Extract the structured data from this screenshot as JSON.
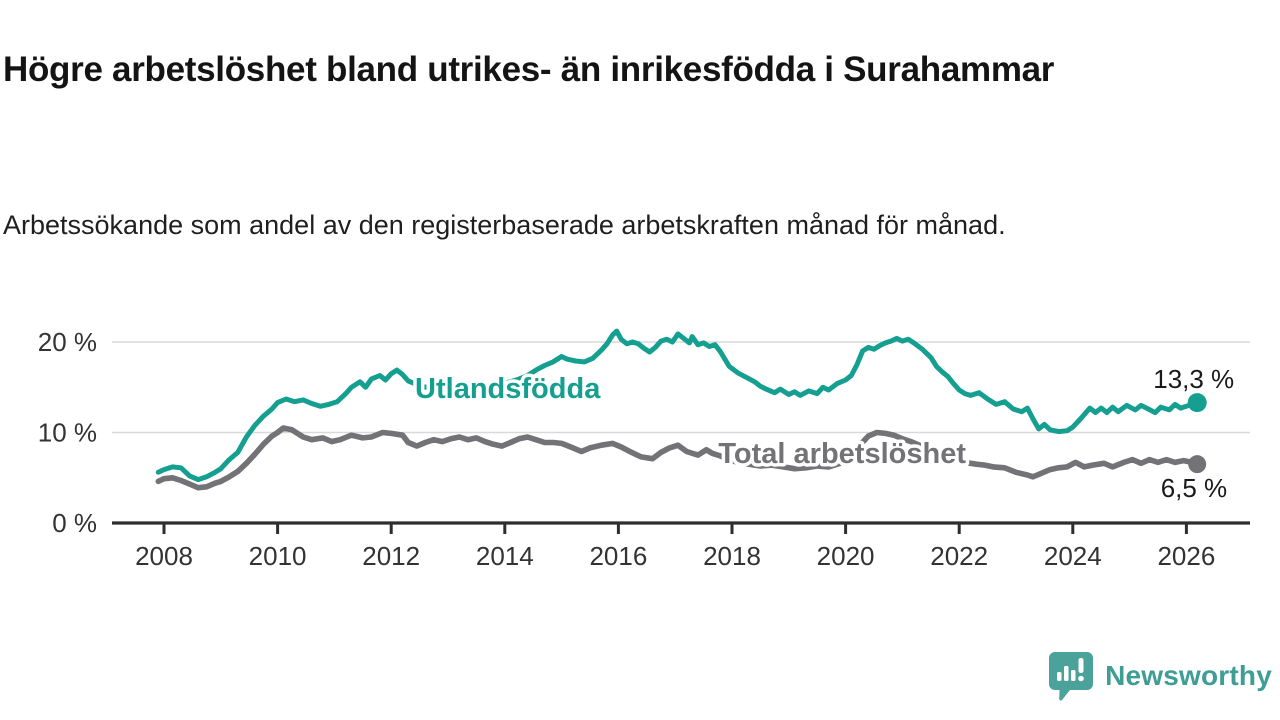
{
  "header": {
    "title": "Högre arbetslöshet bland utrikes- än inrikesfödda i Surahammar",
    "subtitle": "Arbetssökande som andel av den registerbaserade arbetskraften månad för månad."
  },
  "chart_data": {
    "type": "line",
    "unit": "%",
    "grid": "horizontal gridlines at 10 and 20",
    "xlim": [
      2007.9,
      2026.6
    ],
    "ylim": [
      0,
      22
    ],
    "x_ticks": [
      2008,
      2010,
      2012,
      2014,
      2016,
      2018,
      2020,
      2022,
      2024,
      2026
    ],
    "y_ticks": [
      {
        "value": 0,
        "label": "0 %"
      },
      {
        "value": 10,
        "label": "10 %"
      },
      {
        "value": 20,
        "label": "20 %"
      }
    ],
    "series": [
      {
        "name": "Utlandsfödda",
        "color": "#159f90",
        "end_value_label": "13,3 %",
        "label_anchor": [
          2012.42,
          13.8
        ],
        "points": [
          [
            2007.9,
            5.6
          ],
          [
            2008.0,
            5.9
          ],
          [
            2008.15,
            6.2
          ],
          [
            2008.3,
            6.1
          ],
          [
            2008.45,
            5.2
          ],
          [
            2008.6,
            4.8
          ],
          [
            2008.75,
            5.1
          ],
          [
            2008.9,
            5.6
          ],
          [
            2009.0,
            6.0
          ],
          [
            2009.15,
            7.0
          ],
          [
            2009.3,
            7.8
          ],
          [
            2009.45,
            9.5
          ],
          [
            2009.6,
            10.8
          ],
          [
            2009.75,
            11.8
          ],
          [
            2009.9,
            12.6
          ],
          [
            2010.0,
            13.3
          ],
          [
            2010.15,
            13.7
          ],
          [
            2010.3,
            13.4
          ],
          [
            2010.45,
            13.6
          ],
          [
            2010.6,
            13.2
          ],
          [
            2010.75,
            12.9
          ],
          [
            2010.9,
            13.1
          ],
          [
            2011.05,
            13.4
          ],
          [
            2011.2,
            14.3
          ],
          [
            2011.3,
            15.0
          ],
          [
            2011.45,
            15.6
          ],
          [
            2011.55,
            15.0
          ],
          [
            2011.65,
            15.9
          ],
          [
            2011.8,
            16.3
          ],
          [
            2011.9,
            15.8
          ],
          [
            2012.0,
            16.5
          ],
          [
            2012.1,
            16.9
          ],
          [
            2012.2,
            16.4
          ],
          [
            2012.3,
            15.7
          ],
          [
            2012.45,
            15.3
          ],
          [
            2012.6,
            15.0
          ],
          [
            2012.75,
            15.2
          ],
          [
            2012.9,
            14.9
          ],
          [
            2013.05,
            15.1
          ],
          [
            2013.2,
            14.7
          ],
          [
            2013.35,
            14.9
          ],
          [
            2013.5,
            14.6
          ],
          [
            2013.65,
            14.8
          ],
          [
            2013.8,
            15.1
          ],
          [
            2013.95,
            15.4
          ],
          [
            2014.1,
            15.6
          ],
          [
            2014.25,
            15.9
          ],
          [
            2014.4,
            16.3
          ],
          [
            2014.55,
            16.9
          ],
          [
            2014.7,
            17.4
          ],
          [
            2014.85,
            17.8
          ],
          [
            2015.0,
            18.4
          ],
          [
            2015.1,
            18.1
          ],
          [
            2015.25,
            17.9
          ],
          [
            2015.4,
            17.8
          ],
          [
            2015.55,
            18.2
          ],
          [
            2015.7,
            19.1
          ],
          [
            2015.8,
            19.8
          ],
          [
            2015.9,
            20.8
          ],
          [
            2015.97,
            21.2
          ],
          [
            2016.05,
            20.3
          ],
          [
            2016.15,
            19.8
          ],
          [
            2016.25,
            20.0
          ],
          [
            2016.35,
            19.8
          ],
          [
            2016.45,
            19.3
          ],
          [
            2016.55,
            18.9
          ],
          [
            2016.65,
            19.4
          ],
          [
            2016.75,
            20.1
          ],
          [
            2016.85,
            20.3
          ],
          [
            2016.95,
            20.0
          ],
          [
            2017.05,
            20.9
          ],
          [
            2017.15,
            20.4
          ],
          [
            2017.25,
            19.9
          ],
          [
            2017.3,
            20.6
          ],
          [
            2017.4,
            19.7
          ],
          [
            2017.5,
            19.9
          ],
          [
            2017.6,
            19.5
          ],
          [
            2017.7,
            19.7
          ],
          [
            2017.8,
            18.9
          ],
          [
            2017.95,
            17.3
          ],
          [
            2018.1,
            16.6
          ],
          [
            2018.25,
            16.1
          ],
          [
            2018.4,
            15.6
          ],
          [
            2018.5,
            15.1
          ],
          [
            2018.6,
            14.8
          ],
          [
            2018.75,
            14.4
          ],
          [
            2018.85,
            14.8
          ],
          [
            2019.0,
            14.2
          ],
          [
            2019.1,
            14.5
          ],
          [
            2019.2,
            14.1
          ],
          [
            2019.35,
            14.6
          ],
          [
            2019.5,
            14.3
          ],
          [
            2019.6,
            15.0
          ],
          [
            2019.7,
            14.7
          ],
          [
            2019.85,
            15.4
          ],
          [
            2020.0,
            15.8
          ],
          [
            2020.1,
            16.3
          ],
          [
            2020.2,
            17.5
          ],
          [
            2020.3,
            19.0
          ],
          [
            2020.4,
            19.4
          ],
          [
            2020.5,
            19.2
          ],
          [
            2020.6,
            19.6
          ],
          [
            2020.7,
            19.9
          ],
          [
            2020.8,
            20.1
          ],
          [
            2020.9,
            20.4
          ],
          [
            2021.0,
            20.1
          ],
          [
            2021.1,
            20.3
          ],
          [
            2021.2,
            19.9
          ],
          [
            2021.35,
            19.2
          ],
          [
            2021.5,
            18.3
          ],
          [
            2021.6,
            17.3
          ],
          [
            2021.7,
            16.7
          ],
          [
            2021.8,
            16.2
          ],
          [
            2021.9,
            15.4
          ],
          [
            2022.0,
            14.7
          ],
          [
            2022.1,
            14.3
          ],
          [
            2022.2,
            14.1
          ],
          [
            2022.35,
            14.4
          ],
          [
            2022.5,
            13.7
          ],
          [
            2022.65,
            13.1
          ],
          [
            2022.8,
            13.4
          ],
          [
            2022.95,
            12.6
          ],
          [
            2023.1,
            12.3
          ],
          [
            2023.2,
            12.7
          ],
          [
            2023.3,
            11.5
          ],
          [
            2023.4,
            10.4
          ],
          [
            2023.5,
            10.9
          ],
          [
            2023.6,
            10.3
          ],
          [
            2023.75,
            10.1
          ],
          [
            2023.9,
            10.2
          ],
          [
            2024.0,
            10.6
          ],
          [
            2024.15,
            11.6
          ],
          [
            2024.3,
            12.7
          ],
          [
            2024.4,
            12.2
          ],
          [
            2024.5,
            12.7
          ],
          [
            2024.6,
            12.2
          ],
          [
            2024.7,
            12.8
          ],
          [
            2024.8,
            12.3
          ],
          [
            2024.95,
            13.0
          ],
          [
            2025.1,
            12.5
          ],
          [
            2025.2,
            13.0
          ],
          [
            2025.3,
            12.7
          ],
          [
            2025.45,
            12.2
          ],
          [
            2025.55,
            12.8
          ],
          [
            2025.7,
            12.5
          ],
          [
            2025.8,
            13.1
          ],
          [
            2025.9,
            12.7
          ],
          [
            2026.0,
            12.9
          ],
          [
            2026.1,
            13.1
          ],
          [
            2026.19,
            13.3
          ]
        ]
      },
      {
        "name": "Total arbetslöshet",
        "color": "#737377",
        "end_value_label": "6,5 %",
        "label_anchor": [
          2017.76,
          6.63
        ],
        "points": [
          [
            2007.9,
            4.6
          ],
          [
            2008.0,
            4.9
          ],
          [
            2008.15,
            5.0
          ],
          [
            2008.3,
            4.7
          ],
          [
            2008.45,
            4.3
          ],
          [
            2008.6,
            3.9
          ],
          [
            2008.75,
            4.0
          ],
          [
            2008.9,
            4.4
          ],
          [
            2009.0,
            4.6
          ],
          [
            2009.15,
            5.1
          ],
          [
            2009.3,
            5.7
          ],
          [
            2009.45,
            6.6
          ],
          [
            2009.6,
            7.6
          ],
          [
            2009.75,
            8.7
          ],
          [
            2009.9,
            9.6
          ],
          [
            2010.0,
            10.0
          ],
          [
            2010.1,
            10.5
          ],
          [
            2010.25,
            10.3
          ],
          [
            2010.45,
            9.5
          ],
          [
            2010.6,
            9.2
          ],
          [
            2010.8,
            9.4
          ],
          [
            2010.95,
            9.0
          ],
          [
            2011.1,
            9.2
          ],
          [
            2011.3,
            9.7
          ],
          [
            2011.5,
            9.4
          ],
          [
            2011.65,
            9.5
          ],
          [
            2011.85,
            10.0
          ],
          [
            2012.0,
            9.9
          ],
          [
            2012.2,
            9.7
          ],
          [
            2012.3,
            8.9
          ],
          [
            2012.45,
            8.5
          ],
          [
            2012.6,
            8.9
          ],
          [
            2012.75,
            9.2
          ],
          [
            2012.9,
            9.0
          ],
          [
            2013.05,
            9.3
          ],
          [
            2013.2,
            9.5
          ],
          [
            2013.35,
            9.2
          ],
          [
            2013.5,
            9.4
          ],
          [
            2013.65,
            9.0
          ],
          [
            2013.8,
            8.7
          ],
          [
            2013.95,
            8.5
          ],
          [
            2014.1,
            8.9
          ],
          [
            2014.25,
            9.3
          ],
          [
            2014.4,
            9.5
          ],
          [
            2014.55,
            9.2
          ],
          [
            2014.7,
            8.9
          ],
          [
            2014.85,
            8.9
          ],
          [
            2015.0,
            8.8
          ],
          [
            2015.2,
            8.3
          ],
          [
            2015.35,
            7.9
          ],
          [
            2015.5,
            8.3
          ],
          [
            2015.7,
            8.6
          ],
          [
            2015.9,
            8.8
          ],
          [
            2016.05,
            8.4
          ],
          [
            2016.2,
            7.9
          ],
          [
            2016.4,
            7.3
          ],
          [
            2016.6,
            7.1
          ],
          [
            2016.75,
            7.8
          ],
          [
            2016.9,
            8.3
          ],
          [
            2017.05,
            8.6
          ],
          [
            2017.2,
            7.9
          ],
          [
            2017.4,
            7.5
          ],
          [
            2017.55,
            8.1
          ],
          [
            2017.65,
            7.7
          ],
          [
            2017.8,
            7.4
          ],
          [
            2017.95,
            7.0
          ],
          [
            2018.1,
            6.7
          ],
          [
            2018.3,
            6.5
          ],
          [
            2018.5,
            6.3
          ],
          [
            2018.7,
            6.4
          ],
          [
            2018.9,
            6.2
          ],
          [
            2019.1,
            6.0
          ],
          [
            2019.3,
            6.1
          ],
          [
            2019.5,
            6.3
          ],
          [
            2019.7,
            6.2
          ],
          [
            2019.9,
            6.6
          ],
          [
            2020.1,
            7.2
          ],
          [
            2020.25,
            8.6
          ],
          [
            2020.4,
            9.6
          ],
          [
            2020.55,
            10.0
          ],
          [
            2020.7,
            9.9
          ],
          [
            2020.85,
            9.7
          ],
          [
            2021.0,
            9.3
          ],
          [
            2021.15,
            9.0
          ],
          [
            2021.3,
            8.6
          ],
          [
            2021.5,
            8.1
          ],
          [
            2021.7,
            7.5
          ],
          [
            2021.9,
            7.0
          ],
          [
            2022.1,
            6.7
          ],
          [
            2022.3,
            6.5
          ],
          [
            2022.45,
            6.4
          ],
          [
            2022.6,
            6.2
          ],
          [
            2022.8,
            6.1
          ],
          [
            2023.0,
            5.6
          ],
          [
            2023.2,
            5.3
          ],
          [
            2023.3,
            5.1
          ],
          [
            2023.45,
            5.5
          ],
          [
            2023.6,
            5.9
          ],
          [
            2023.75,
            6.1
          ],
          [
            2023.9,
            6.2
          ],
          [
            2024.05,
            6.7
          ],
          [
            2024.2,
            6.2
          ],
          [
            2024.35,
            6.4
          ],
          [
            2024.55,
            6.6
          ],
          [
            2024.7,
            6.2
          ],
          [
            2024.9,
            6.7
          ],
          [
            2025.05,
            7.0
          ],
          [
            2025.2,
            6.6
          ],
          [
            2025.35,
            7.0
          ],
          [
            2025.5,
            6.7
          ],
          [
            2025.65,
            7.0
          ],
          [
            2025.8,
            6.7
          ],
          [
            2025.95,
            6.9
          ],
          [
            2026.1,
            6.7
          ],
          [
            2026.19,
            6.5
          ]
        ]
      }
    ]
  },
  "colors": {
    "axis": "#2e2e2e",
    "gridline": "#d9d9d9",
    "tick_label": "#333333",
    "end_label": "#1a1a1a",
    "logo_icon": "#4aa29a",
    "logo_text": "#3e9d94"
  },
  "footer": {
    "brand": "Newsworthy"
  }
}
